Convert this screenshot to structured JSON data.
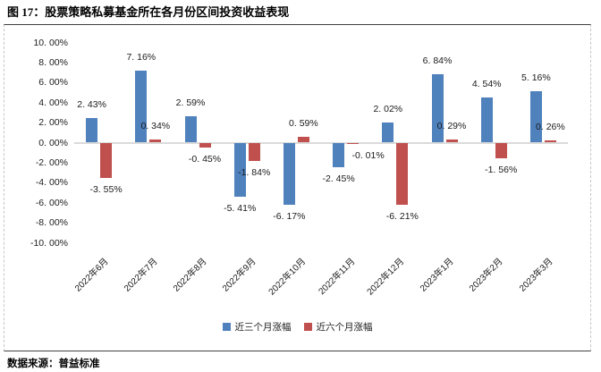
{
  "title": "图 17：股票策略私募基金所在各月份区间投资收益表现",
  "source": "数据来源：普益标准",
  "chart_data": {
    "type": "bar",
    "title": "图 17：股票策略私募基金所在各月份区间投资收益表现",
    "categories": [
      "2022年6月",
      "2022年7月",
      "2022年8月",
      "2022年9月",
      "2022年10月",
      "2022年11月",
      "2022年12月",
      "2023年1月",
      "2023年2月",
      "2023年3月"
    ],
    "series": [
      {
        "name": "近三个月涨幅",
        "color": "#4F81BD",
        "values": [
          2.43,
          7.16,
          2.59,
          -5.41,
          -6.17,
          -2.45,
          2.02,
          6.84,
          4.54,
          5.16
        ],
        "labels": [
          "2. 43%",
          "7. 16%",
          "2. 59%",
          "-5. 41%",
          "-6. 17%",
          "-2. 45%",
          "2. 02%",
          "6. 84%",
          "4. 54%",
          "5. 16%"
        ],
        "label_dx": [
          0,
          0,
          0,
          0,
          0,
          0,
          0,
          0,
          0,
          0
        ]
      },
      {
        "name": "近六个月涨幅",
        "color": "#C0504D",
        "values": [
          -3.55,
          0.34,
          -0.45,
          -1.84,
          0.59,
          -0.01,
          -6.21,
          0.29,
          -1.56,
          0.26
        ],
        "labels": [
          "-3. 55%",
          "0. 34%",
          "-0. 45%",
          "-1. 84%",
          "0. 59%",
          "-0. 01%",
          "-6. 21%",
          "0. 29%",
          "-1. 56%",
          "0. 26%"
        ],
        "label_dx": [
          0,
          0,
          0,
          0,
          0,
          17,
          0,
          0,
          0,
          0
        ]
      }
    ],
    "ylim": [
      -10,
      10
    ],
    "yticks": [
      {
        "value": 10,
        "label": "10. 00%"
      },
      {
        "value": 8,
        "label": "8. 00%"
      },
      {
        "value": 6,
        "label": "6. 00%"
      },
      {
        "value": 4,
        "label": "4. 00%"
      },
      {
        "value": 2,
        "label": "2. 00%"
      },
      {
        "value": 0,
        "label": "0. 00%"
      },
      {
        "value": -2,
        "label": "-2. 00%"
      },
      {
        "value": -4,
        "label": "-4. 00%"
      },
      {
        "value": -6,
        "label": "-6. 00%"
      },
      {
        "value": -8,
        "label": "-8. 00%"
      },
      {
        "value": -10,
        "label": "-10. 00%"
      }
    ],
    "grid": false,
    "legend_position": "bottom",
    "data_labels": true
  }
}
